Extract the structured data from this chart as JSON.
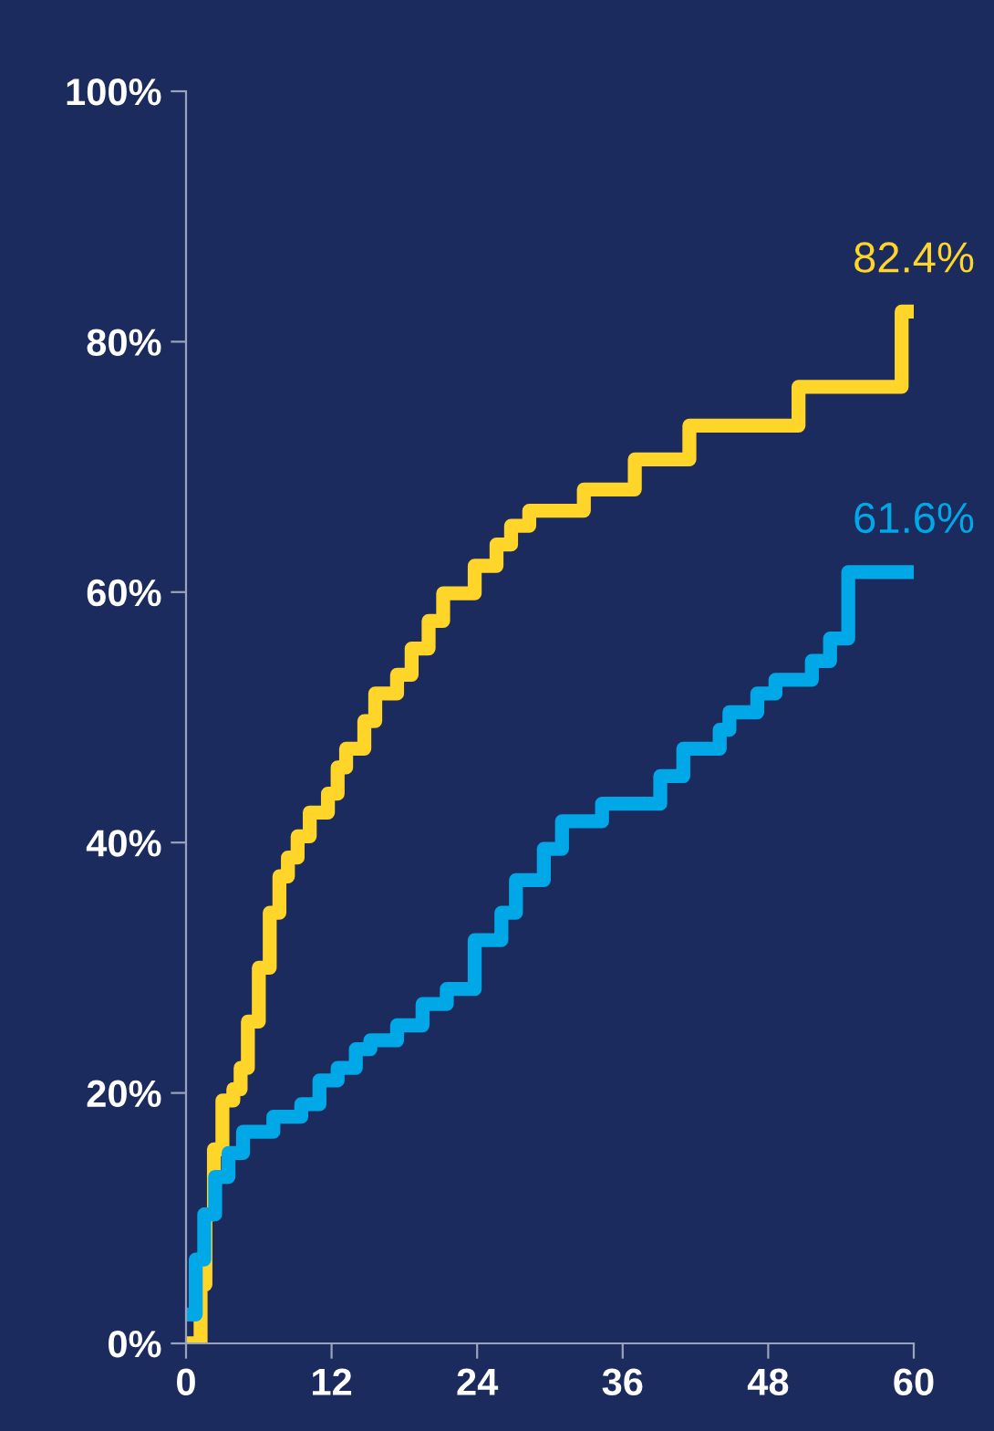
{
  "chart_data": {
    "type": "step",
    "xlim": [
      0,
      60
    ],
    "ylim": [
      0,
      100
    ],
    "xticks": [
      0,
      12,
      24,
      36,
      48,
      60
    ],
    "yticks": [
      {
        "value": 0,
        "label": "0%"
      },
      {
        "value": 20,
        "label": "20%"
      },
      {
        "value": 40,
        "label": "40%"
      },
      {
        "value": 60,
        "label": "60%"
      },
      {
        "value": 80,
        "label": "80%"
      },
      {
        "value": 100,
        "label": "100%"
      }
    ],
    "grid": false,
    "series": [
      {
        "color": "#ffd52a",
        "x": [
          0,
          0.5,
          1.2,
          1.6,
          2.3,
          3,
          3.9,
          4.5,
          5.1,
          6,
          6.9,
          7.7,
          8.4,
          9.2,
          10.2,
          11.7,
          12.5,
          13.2,
          14.7,
          15.6,
          17.4,
          18.6,
          20,
          21.2,
          23.8,
          25.6,
          26.8,
          28.3,
          32.8,
          37,
          41.5,
          50.5,
          59,
          60
        ],
        "values": [
          0,
          0,
          4.7,
          10.3,
          15.5,
          19.4,
          20.3,
          22,
          25.7,
          30,
          34.4,
          37.3,
          38.8,
          40.5,
          42.4,
          43.9,
          46,
          47.5,
          49.7,
          51.9,
          53.4,
          55.5,
          57.7,
          59.9,
          62.1,
          63.8,
          65.3,
          66.5,
          68.2,
          70.6,
          73.3,
          76.4,
          82.4,
          82.4
        ]
      },
      {
        "color": "#00a8e8",
        "x": [
          0,
          0.8,
          1.5,
          2.4,
          3.5,
          4.7,
          7.2,
          9.5,
          11,
          12.5,
          14,
          15.2,
          17.4,
          19.5,
          21.5,
          23.8,
          26,
          27.2,
          29.5,
          31,
          34.3,
          39.1,
          41,
          44,
          44.8,
          47.1,
          48.6,
          51.6,
          53.1,
          54.6,
          60
        ],
        "values": [
          2.3,
          6.7,
          10.3,
          13.3,
          15.2,
          16.9,
          18.1,
          19.1,
          21,
          22,
          23.5,
          24.2,
          25.4,
          27.1,
          28.3,
          32.2,
          34.4,
          37,
          39.5,
          41.7,
          43.1,
          45.3,
          47.5,
          49,
          50.4,
          51.9,
          53,
          54.5,
          56.3,
          61.6,
          61.6
        ]
      }
    ],
    "annotations": [
      {
        "text": "82.4%",
        "x": 60,
        "y": 82.4
      },
      {
        "text": "61.6%",
        "x": 60,
        "y": 61.6
      }
    ]
  }
}
